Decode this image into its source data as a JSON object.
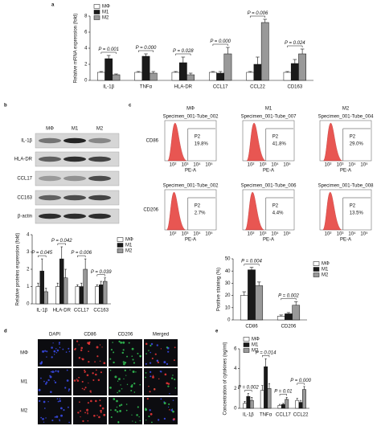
{
  "panel_letters": [
    "a",
    "b",
    "c",
    "d",
    "e"
  ],
  "chart_data": [
    {
      "type": "bar",
      "ylabel": "Relative mRNA expression (fold)",
      "legend": "top-left",
      "categories": [
        "IL-1β",
        "TNFα",
        "HLA-DR",
        "CCL17",
        "CCL22",
        "CD163"
      ],
      "series": [
        {
          "name": "MΦ",
          "color": "#ffffff",
          "values": [
            1,
            1,
            1,
            1,
            1,
            1
          ],
          "errors": [
            0.1,
            0.1,
            0.1,
            0.1,
            0.1,
            0.1
          ]
        },
        {
          "name": "M1",
          "color": "#1a1a1a",
          "values": [
            2.7,
            3.0,
            2.2,
            0.9,
            2.0,
            2.1
          ],
          "errors": [
            0.4,
            0.3,
            0.7,
            0.2,
            0.9,
            0.5
          ]
        },
        {
          "name": "M2",
          "color": "#999999",
          "values": [
            0.7,
            0.9,
            0.7,
            3.3,
            7.2,
            3.3
          ],
          "errors": [
            0.1,
            0.2,
            0.2,
            0.8,
            0.4,
            0.6
          ]
        }
      ],
      "annotations": [
        "P = 0.001",
        "P = 0.000",
        "P = 0.028",
        "P = 0.000",
        "P = 0.006",
        "P = 0.024"
      ],
      "ylim": [
        0,
        8
      ],
      "yticks": [
        0,
        2,
        4,
        6,
        8
      ]
    },
    {
      "type": "bar",
      "ylabel": "Relative proteins expression (fold)",
      "legend": "right",
      "categories": [
        "IL-1β",
        "HLA-DR",
        "CCL17",
        "CC163"
      ],
      "series": [
        {
          "name": "MΦ",
          "color": "#ffffff",
          "values": [
            1,
            1,
            1,
            1
          ],
          "errors": [
            0.2,
            0.2,
            0.1,
            0.1
          ]
        },
        {
          "name": "M1",
          "color": "#1a1a1a",
          "values": [
            1.9,
            2.6,
            1.0,
            1.1
          ],
          "errors": [
            0.7,
            0.7,
            0.2,
            0.2
          ]
        },
        {
          "name": "M2",
          "color": "#999999",
          "values": [
            0.7,
            1.5,
            2.0,
            1.3
          ],
          "errors": [
            0.2,
            0.5,
            0.6,
            0.2
          ]
        }
      ],
      "annotations": [
        "P = 0.045",
        "P = 0.042",
        "P = 0.006",
        "P = 0.039"
      ],
      "ylim": [
        0,
        4
      ],
      "yticks": [
        0,
        1,
        2,
        3,
        4
      ]
    },
    {
      "type": "bar",
      "ylabel": "Positive staining (%)",
      "legend": "right",
      "categories": [
        "CD86",
        "CD206"
      ],
      "series": [
        {
          "name": "MΦ",
          "color": "#ffffff",
          "values": [
            20,
            3
          ],
          "errors": [
            3,
            1
          ]
        },
        {
          "name": "M1",
          "color": "#1a1a1a",
          "values": [
            41,
            5
          ],
          "errors": [
            2,
            1
          ]
        },
        {
          "name": "M2",
          "color": "#999999",
          "values": [
            28,
            12
          ],
          "errors": [
            3,
            3
          ]
        }
      ],
      "annotations": [
        "P = 0.004",
        "P = 0.002"
      ],
      "ylim": [
        0,
        50
      ],
      "yticks": [
        0,
        10,
        20,
        30,
        40,
        50
      ]
    },
    {
      "type": "bar",
      "ylabel": "Concentration of cytokines (ng/ml)",
      "legend": "top-left",
      "categories": [
        "IL-1β",
        "TNFα",
        "CCL17",
        "CCL22"
      ],
      "series": [
        {
          "name": "MΦ",
          "color": "#ffffff",
          "values": [
            0.5,
            1.8,
            0.3,
            0.8
          ],
          "errors": [
            0.2,
            0.5,
            0.1,
            0.2
          ]
        },
        {
          "name": "M1",
          "color": "#1a1a1a",
          "values": [
            1.2,
            4.2,
            0.4,
            0.6
          ],
          "errors": [
            0.3,
            0.8,
            0.1,
            0.2
          ]
        },
        {
          "name": "M2",
          "color": "#999999",
          "values": [
            0.8,
            2.0,
            0.9,
            1.9
          ],
          "errors": [
            0.3,
            0.5,
            0.2,
            0.3
          ]
        }
      ],
      "annotations": [
        "P = 0.002",
        "P = 0.014",
        "P = 0.01",
        "P = 0.000"
      ],
      "ylim": [
        0,
        6
      ],
      "yticks": [
        0,
        2,
        4,
        6
      ]
    }
  ],
  "blot": {
    "columns": [
      "MΦ",
      "M1",
      "M2"
    ],
    "rows": [
      "IL-1β",
      "HLA-DR",
      "CCL17",
      "CC163",
      "β-actin"
    ]
  },
  "flow": {
    "columns": [
      "MΦ",
      "M1",
      "M2"
    ],
    "axis_label": "PE-A",
    "ticks": [
      "10²",
      "10³",
      "10⁴",
      "10⁵"
    ],
    "rows": [
      {
        "label": "CD86",
        "panels": [
          {
            "specimen": "Specimen_001-Tube_002",
            "gate": "P2",
            "percent": "19.8%"
          },
          {
            "specimen": "Specimen_001-Tube_007",
            "gate": "P2",
            "percent": "41.8%"
          },
          {
            "specimen": "Specimen_001-Tube_004",
            "gate": "P2",
            "percent": "29.0%"
          }
        ]
      },
      {
        "label": "CD206",
        "panels": [
          {
            "specimen": "Specimen_001-Tube_002",
            "gate": "P2",
            "percent": "2.7%"
          },
          {
            "specimen": "Specimen_001-Tube_006",
            "gate": "P2",
            "percent": "4.4%"
          },
          {
            "specimen": "Specimen_001-Tube_008",
            "gate": "P2",
            "percent": "13.5%"
          }
        ]
      }
    ]
  },
  "microscopy": {
    "columns": [
      "DAPI",
      "CD86",
      "CD206",
      "Merged"
    ],
    "rows": [
      "MΦ",
      "M1",
      "M2"
    ]
  }
}
